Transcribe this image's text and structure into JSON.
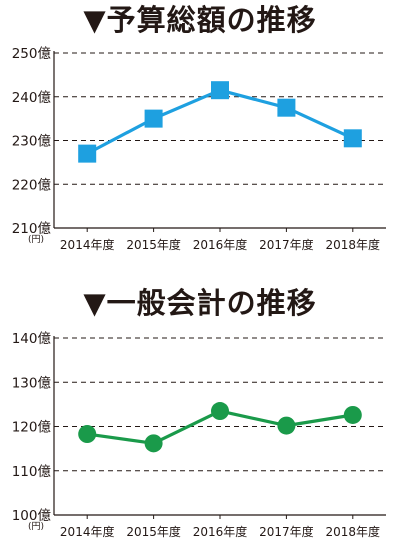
{
  "chart_data": [
    {
      "type": "line",
      "title": "▼予算総額の推移",
      "unit_label": "(円)",
      "categories": [
        "2014年度",
        "2015年度",
        "2016年度",
        "2017年度",
        "2018年度"
      ],
      "y_tick_labels": [
        "210億",
        "220億",
        "230億",
        "240億",
        "250億"
      ],
      "y_ticks": [
        210,
        220,
        230,
        240,
        250
      ],
      "ylim": [
        210,
        250
      ],
      "series": [
        {
          "values": [
            227,
            235,
            241.5,
            237.5,
            230.5
          ],
          "color": "#1ea0e0",
          "marker": "square"
        }
      ],
      "grid": true
    },
    {
      "type": "line",
      "title": "▼一般会計の推移",
      "unit_label": "(円)",
      "categories": [
        "2014年度",
        "2015年度",
        "2016年度",
        "2017年度",
        "2018年度"
      ],
      "y_tick_labels": [
        "100億",
        "110億",
        "120億",
        "130億",
        "140億"
      ],
      "y_ticks": [
        100,
        110,
        120,
        130,
        140
      ],
      "ylim": [
        100,
        140
      ],
      "series": [
        {
          "values": [
            118.3,
            116.2,
            123.5,
            120.2,
            122.6
          ],
          "color": "#1a9a4a",
          "marker": "circle"
        }
      ],
      "grid": true
    }
  ]
}
